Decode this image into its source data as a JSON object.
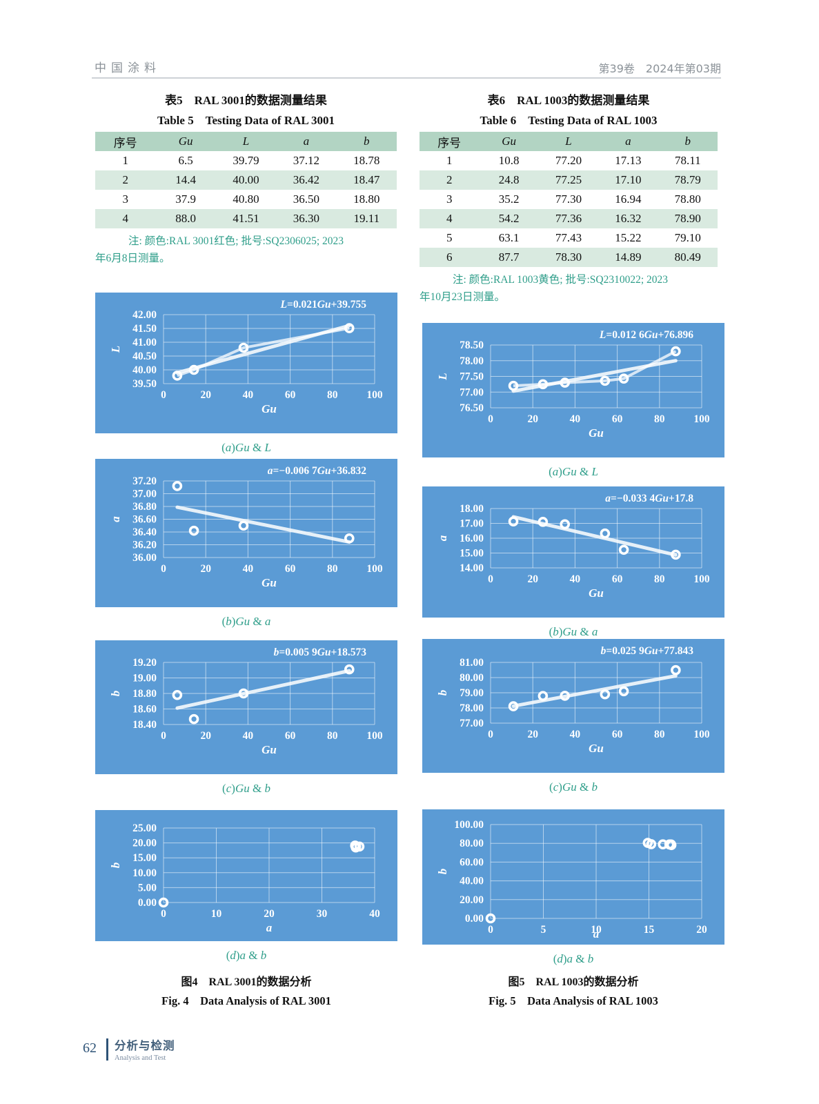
{
  "header": {
    "journal": "中国涂料",
    "issue": "第39卷　2024年第03期"
  },
  "footer": {
    "page_number": "62",
    "section_cn": "分析与检测",
    "section_en": "Analysis and Test"
  },
  "colors": {
    "chart_bg": "#5b9bd5",
    "table_header_bg": "#b2d4c3",
    "table_row_alt_bg": "#d9eae0",
    "note_green": "#2f9e8a",
    "header_gray": "#8b9298",
    "footer_blue": "#2e5377"
  },
  "tables": [
    {
      "title_cn": "表5　RAL 3001的数据测量结果",
      "title_en": "Table 5　Testing Data of RAL 3001",
      "columns": [
        "序号",
        "Gu",
        "L",
        "a",
        "b"
      ],
      "rows": [
        [
          "1",
          "6.5",
          "39.79",
          "37.12",
          "18.78"
        ],
        [
          "2",
          "14.4",
          "40.00",
          "36.42",
          "18.47"
        ],
        [
          "3",
          "37.9",
          "40.80",
          "36.50",
          "18.80"
        ],
        [
          "4",
          "88.0",
          "41.51",
          "36.30",
          "19.11"
        ]
      ],
      "note_lines": [
        "注: 颜色:RAL 3001红色; 批号:SQ2306025; 2023",
        "年6月8日测量。"
      ]
    },
    {
      "title_cn": "表6　RAL 1003的数据测量结果",
      "title_en": "Table 6　Testing Data of RAL 1003",
      "columns": [
        "序号",
        "Gu",
        "L",
        "a",
        "b"
      ],
      "rows": [
        [
          "1",
          "10.8",
          "77.20",
          "17.13",
          "78.11"
        ],
        [
          "2",
          "24.8",
          "77.25",
          "17.10",
          "78.79"
        ],
        [
          "3",
          "35.2",
          "77.30",
          "16.94",
          "78.80"
        ],
        [
          "4",
          "54.2",
          "77.36",
          "16.32",
          "78.90"
        ],
        [
          "5",
          "63.1",
          "77.43",
          "15.22",
          "79.10"
        ],
        [
          "6",
          "87.7",
          "78.30",
          "14.89",
          "80.49"
        ]
      ],
      "note_lines": [
        "注: 颜色:RAL 1003黄色; 批号:SQ2310022; 2023",
        "年10月23日测量。"
      ]
    }
  ],
  "figures": [
    {
      "caption_cn": "图4　RAL 3001的数据分析",
      "caption_en": "Fig. 4　Data Analysis of RAL 3001"
    },
    {
      "caption_cn": "图5　RAL 1003的数据分析",
      "caption_en": "Fig. 5　Data Analysis of RAL 1003"
    }
  ],
  "chart_data": [
    {
      "type": "scatter",
      "figure": "Fig. 4",
      "sub_caption": "(a)Gu & L",
      "equation": "L=0.021Gu+39.755",
      "xlabel": "Gu",
      "ylabel": "L",
      "xlim": [
        0,
        100
      ],
      "xticks": [
        0,
        20,
        40,
        60,
        80,
        100
      ],
      "xtick_labels": [
        "0",
        "20",
        "40",
        "60",
        "80",
        "100"
      ],
      "ylim": [
        39.5,
        42.0
      ],
      "yticks": [
        39.5,
        40.0,
        40.5,
        41.0,
        41.5,
        42.0
      ],
      "ytick_labels": [
        "39.50",
        "40.00",
        "40.50",
        "41.00",
        "41.50",
        "42.00"
      ],
      "points": [
        [
          6.5,
          39.79
        ],
        [
          14.4,
          40.0
        ],
        [
          37.9,
          40.8
        ],
        [
          88.0,
          41.51
        ]
      ],
      "connect": true,
      "trend": {
        "slope": 0.021,
        "intercept": 39.755
      }
    },
    {
      "type": "scatter",
      "figure": "Fig. 4",
      "sub_caption": "(b)Gu & a",
      "equation": "a=−0.006 7Gu+36.832",
      "xlabel": "Gu",
      "ylabel": "a",
      "xlim": [
        0,
        100
      ],
      "xticks": [
        0,
        20,
        40,
        60,
        80,
        100
      ],
      "xtick_labels": [
        "0",
        "20",
        "40",
        "60",
        "80",
        "100"
      ],
      "ylim": [
        36.0,
        37.2
      ],
      "yticks": [
        36.0,
        36.2,
        36.4,
        36.6,
        36.8,
        37.0,
        37.2
      ],
      "ytick_labels": [
        "36.00",
        "36.20",
        "36.40",
        "36.60",
        "36.80",
        "37.00",
        "37.20"
      ],
      "points": [
        [
          6.5,
          37.12
        ],
        [
          14.4,
          36.42
        ],
        [
          37.9,
          36.5
        ],
        [
          88.0,
          36.3
        ]
      ],
      "connect": false,
      "trend": {
        "slope": -0.0067,
        "intercept": 36.832
      }
    },
    {
      "type": "scatter",
      "figure": "Fig. 4",
      "sub_caption": "(c)Gu & b",
      "equation": "b=0.005 9Gu+18.573",
      "xlabel": "Gu",
      "ylabel": "b",
      "xlim": [
        0,
        100
      ],
      "xticks": [
        0,
        20,
        40,
        60,
        80,
        100
      ],
      "xtick_labels": [
        "0",
        "20",
        "40",
        "60",
        "80",
        "100"
      ],
      "ylim": [
        18.4,
        19.2
      ],
      "yticks": [
        18.4,
        18.6,
        18.8,
        19.0,
        19.2
      ],
      "ytick_labels": [
        "18.40",
        "18.60",
        "18.80",
        "19.00",
        "19.20"
      ],
      "points": [
        [
          6.5,
          18.78
        ],
        [
          14.4,
          18.47
        ],
        [
          37.9,
          18.8
        ],
        [
          88.0,
          19.11
        ]
      ],
      "connect": false,
      "trend": {
        "slope": 0.0059,
        "intercept": 18.573
      }
    },
    {
      "type": "scatter",
      "figure": "Fig. 4",
      "sub_caption": "(d)a & b",
      "equation": null,
      "xlabel": "a",
      "ylabel": "b",
      "xlim": [
        0,
        40
      ],
      "xticks": [
        0,
        10,
        20,
        30,
        40
      ],
      "xtick_labels": [
        "0",
        "10",
        "20",
        "30",
        "40"
      ],
      "ylim": [
        0,
        25
      ],
      "yticks": [
        0,
        5,
        10,
        15,
        20,
        25
      ],
      "ytick_labels": [
        "0.00",
        "5.00",
        "10.00",
        "15.00",
        "20.00",
        "25.00"
      ],
      "points": [
        [
          0,
          0
        ],
        [
          37.12,
          18.78
        ],
        [
          36.42,
          18.47
        ],
        [
          36.5,
          18.8
        ],
        [
          36.3,
          19.11
        ]
      ],
      "connect": false,
      "trend": null
    },
    {
      "type": "scatter",
      "figure": "Fig. 5",
      "sub_caption": "(a)Gu & L",
      "equation": "L=0.012 6Gu+76.896",
      "xlabel": "Gu",
      "ylabel": "L",
      "xlim": [
        0,
        100
      ],
      "xticks": [
        0,
        20,
        40,
        60,
        80,
        100
      ],
      "xtick_labels": [
        "0",
        "20",
        "40",
        "60",
        "80",
        "100"
      ],
      "ylim": [
        76.5,
        78.5
      ],
      "yticks": [
        76.5,
        77.0,
        77.5,
        78.0,
        78.5
      ],
      "ytick_labels": [
        "76.50",
        "77.00",
        "77.50",
        "78.00",
        "78.50"
      ],
      "points": [
        [
          10.8,
          77.2
        ],
        [
          24.8,
          77.25
        ],
        [
          35.2,
          77.3
        ],
        [
          54.2,
          77.36
        ],
        [
          63.1,
          77.43
        ],
        [
          87.7,
          78.3
        ]
      ],
      "connect": true,
      "trend": {
        "slope": 0.0126,
        "intercept": 76.896
      }
    },
    {
      "type": "scatter",
      "figure": "Fig. 5",
      "sub_caption": "(b)Gu & a",
      "equation": "a=−0.033 4Gu+17.8",
      "xlabel": "Gu",
      "ylabel": "a",
      "xlim": [
        0,
        100
      ],
      "xticks": [
        0,
        20,
        40,
        60,
        80,
        100
      ],
      "xtick_labels": [
        "0",
        "20",
        "40",
        "60",
        "80",
        "100"
      ],
      "ylim": [
        14.0,
        18.0
      ],
      "yticks": [
        14.0,
        15.0,
        16.0,
        17.0,
        18.0
      ],
      "ytick_labels": [
        "14.00",
        "15.00",
        "16.00",
        "17.00",
        "18.00"
      ],
      "points": [
        [
          10.8,
          17.13
        ],
        [
          24.8,
          17.1
        ],
        [
          35.2,
          16.94
        ],
        [
          54.2,
          16.32
        ],
        [
          63.1,
          15.22
        ],
        [
          87.7,
          14.89
        ]
      ],
      "connect": false,
      "trend": {
        "slope": -0.0334,
        "intercept": 17.8
      }
    },
    {
      "type": "scatter",
      "figure": "Fig. 5",
      "sub_caption": "(c)Gu & b",
      "equation": "b=0.025 9Gu+77.843",
      "xlabel": "Gu",
      "ylabel": "b",
      "xlim": [
        0,
        100
      ],
      "xticks": [
        0,
        20,
        40,
        60,
        80,
        100
      ],
      "xtick_labels": [
        "0",
        "20",
        "40",
        "60",
        "80",
        "100"
      ],
      "ylim": [
        77.0,
        81.0
      ],
      "yticks": [
        77.0,
        78.0,
        79.0,
        80.0,
        81.0
      ],
      "ytick_labels": [
        "77.00",
        "78.00",
        "79.00",
        "80.00",
        "81.00"
      ],
      "points": [
        [
          10.8,
          78.11
        ],
        [
          24.8,
          78.79
        ],
        [
          35.2,
          78.8
        ],
        [
          54.2,
          78.9
        ],
        [
          63.1,
          79.1
        ],
        [
          87.7,
          80.49
        ]
      ],
      "connect": false,
      "trend": {
        "slope": 0.0259,
        "intercept": 77.843
      }
    },
    {
      "type": "scatter",
      "figure": "Fig. 5",
      "sub_caption": "(d)a & b",
      "equation": null,
      "xlabel": "a",
      "ylabel": "b",
      "xlim": [
        0,
        20
      ],
      "xticks": [
        0,
        5,
        10,
        15,
        20
      ],
      "xtick_labels": [
        "0",
        "5",
        "10",
        "15",
        "20"
      ],
      "ylim": [
        0,
        100
      ],
      "yticks": [
        0,
        20,
        40,
        60,
        80,
        100
      ],
      "ytick_labels": [
        "0.00",
        "20.00",
        "40.00",
        "60.00",
        "80.00",
        "100.00"
      ],
      "points": [
        [
          0,
          0
        ],
        [
          17.13,
          78.11
        ],
        [
          17.1,
          78.79
        ],
        [
          16.94,
          78.8
        ],
        [
          16.32,
          78.9
        ],
        [
          15.22,
          79.1
        ],
        [
          14.89,
          80.49
        ]
      ],
      "connect": false,
      "trend": null
    }
  ]
}
